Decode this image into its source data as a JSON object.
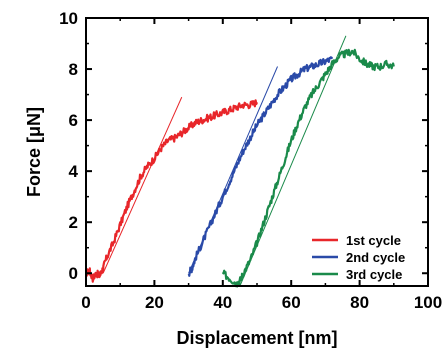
{
  "chart_data": {
    "type": "line",
    "xlabel": "Displacement [nm]",
    "ylabel": "Force [μN]",
    "xlim": [
      0,
      100
    ],
    "ylim": [
      -0.5,
      10
    ],
    "x_ticks": [
      0,
      20,
      40,
      60,
      80,
      100
    ],
    "y_ticks": [
      0,
      2,
      4,
      6,
      8,
      10
    ],
    "grid": false,
    "legend_position": "bottom-right",
    "series": [
      {
        "name": "1st cycle",
        "color": "#e8262a",
        "points": [
          [
            0,
            0
          ],
          [
            1,
            0.1
          ],
          [
            2,
            -0.2
          ],
          [
            3,
            0.0
          ],
          [
            4,
            -0.1
          ],
          [
            5,
            0.2
          ],
          [
            6,
            0.6
          ],
          [
            8,
            1.2
          ],
          [
            10,
            1.9
          ],
          [
            12,
            2.6
          ],
          [
            14,
            3.2
          ],
          [
            16,
            3.8
          ],
          [
            18,
            4.2
          ],
          [
            20,
            4.5
          ],
          [
            22,
            4.9
          ],
          [
            24,
            5.2
          ],
          [
            26,
            5.3
          ],
          [
            28,
            5.5
          ],
          [
            30,
            5.7
          ],
          [
            32,
            5.9
          ],
          [
            34,
            6.0
          ],
          [
            36,
            6.1
          ],
          [
            38,
            6.2
          ],
          [
            40,
            6.3
          ],
          [
            42,
            6.4
          ],
          [
            44,
            6.5
          ],
          [
            46,
            6.6
          ],
          [
            48,
            6.6
          ],
          [
            50,
            6.7
          ]
        ],
        "fit_line": [
          [
            5,
            0
          ],
          [
            28,
            6.9
          ]
        ]
      },
      {
        "name": "2nd cycle",
        "color": "#2a4aa8",
        "points": [
          [
            30,
            0
          ],
          [
            31,
            0.2
          ],
          [
            32,
            0.6
          ],
          [
            34,
            1.2
          ],
          [
            36,
            1.8
          ],
          [
            38,
            2.4
          ],
          [
            40,
            3.0
          ],
          [
            42,
            3.6
          ],
          [
            44,
            4.2
          ],
          [
            46,
            4.8
          ],
          [
            48,
            5.3
          ],
          [
            50,
            5.8
          ],
          [
            52,
            6.2
          ],
          [
            54,
            6.6
          ],
          [
            56,
            7.0
          ],
          [
            58,
            7.3
          ],
          [
            60,
            7.6
          ],
          [
            62,
            7.8
          ],
          [
            64,
            8.0
          ],
          [
            66,
            8.1
          ],
          [
            68,
            8.2
          ],
          [
            70,
            8.3
          ],
          [
            72,
            8.4
          ]
        ],
        "fit_line": [
          [
            30,
            0
          ],
          [
            56,
            8.1
          ]
        ]
      },
      {
        "name": "3rd cycle",
        "color": "#1a8a4a",
        "points": [
          [
            40,
            0
          ],
          [
            42,
            -0.2
          ],
          [
            44,
            -0.4
          ],
          [
            45,
            -0.3
          ],
          [
            46,
            0.0
          ],
          [
            48,
            0.5
          ],
          [
            50,
            1.2
          ],
          [
            52,
            2.0
          ],
          [
            54,
            2.8
          ],
          [
            56,
            3.6
          ],
          [
            58,
            4.4
          ],
          [
            60,
            5.2
          ],
          [
            62,
            5.9
          ],
          [
            64,
            6.5
          ],
          [
            66,
            7.0
          ],
          [
            68,
            7.4
          ],
          [
            70,
            7.8
          ],
          [
            72,
            8.2
          ],
          [
            74,
            8.5
          ],
          [
            76,
            8.6
          ],
          [
            78,
            8.7
          ],
          [
            80,
            8.4
          ],
          [
            82,
            8.2
          ],
          [
            84,
            8.1
          ],
          [
            86,
            8.1
          ],
          [
            88,
            8.2
          ],
          [
            90,
            8.1
          ]
        ],
        "fit_line": [
          [
            45,
            -0.5
          ],
          [
            76,
            9.3
          ]
        ]
      }
    ]
  }
}
